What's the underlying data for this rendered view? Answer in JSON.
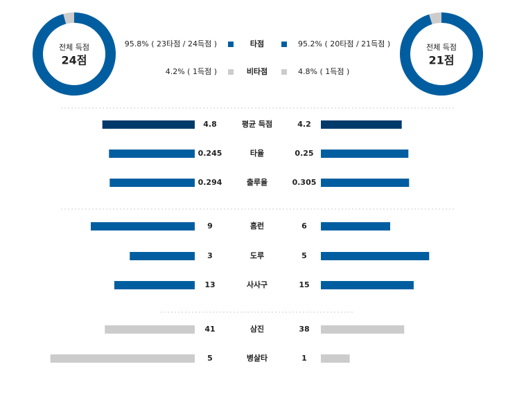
{
  "donuts": [
    {
      "label": "전체 득점",
      "total": "24점",
      "values": [
        95.8,
        4.2
      ],
      "value_labels": [
        "95.8% ( 23타점 / 24득점 )",
        "4.2% ( 1득점 )"
      ]
    },
    {
      "label": "전체 득점",
      "total": "21점",
      "values": [
        95.2,
        4.8
      ],
      "value_labels": [
        "95.2% ( 20타점 / 21득점 )",
        "4.8% ( 1득점 )"
      ]
    }
  ],
  "legend": [
    {
      "name": "타점",
      "color": "#005ea0"
    },
    {
      "name": "비타점",
      "color": "#cccccc"
    }
  ],
  "rows": [
    {
      "label": "평균 득점",
      "values": [
        4.8,
        4.2
      ],
      "color": "#003a6b"
    },
    {
      "label": "타율",
      "values": [
        0.245,
        0.25
      ],
      "color": "#005ea0"
    },
    {
      "label": "출루율",
      "values": [
        0.294,
        0.305
      ],
      "color": "#005ea0"
    },
    {
      "label": "홈런",
      "values": [
        9,
        6
      ],
      "color": "#005ea0"
    },
    {
      "label": "도루",
      "values": [
        3,
        5
      ],
      "color": "#005ea0"
    },
    {
      "label": "사사구",
      "values": [
        13,
        15
      ],
      "color": "#005ea0"
    },
    {
      "label": "삼진",
      "values": [
        41,
        38
      ],
      "color": "#cccccc"
    },
    {
      "label": "병살타",
      "values": [
        5,
        1
      ],
      "color": "#cccccc"
    }
  ]
}
